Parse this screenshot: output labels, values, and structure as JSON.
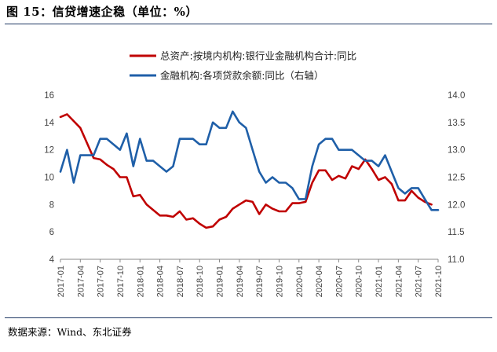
{
  "header": {
    "title": "图 15：信贷增速企稳（单位：%）"
  },
  "footer": {
    "source": "数据来源：Wind、东北证券"
  },
  "chart_data": {
    "type": "line",
    "title": "",
    "xlabel": "",
    "ylabel": "",
    "ylim_left": [
      4,
      16
    ],
    "yticks_left": [
      "4",
      "6",
      "8",
      "10",
      "12",
      "14",
      "16"
    ],
    "ylim_right": [
      11.0,
      14.0
    ],
    "yticks_right": [
      "11.0",
      "11.5",
      "12.0",
      "12.5",
      "13.0",
      "13.5",
      "14.0"
    ],
    "xticks": [
      "2017-01",
      "2017-04",
      "2017-07",
      "2017-10",
      "2018-01",
      "2018-04",
      "2018-07",
      "2018-10",
      "2019-01",
      "2019-04",
      "2019-07",
      "2019-10",
      "2020-01",
      "2020-04",
      "2020-07",
      "2020-10",
      "2021-01",
      "2021-04",
      "2021-07",
      "2021-10"
    ],
    "legend_position": "top",
    "grid": false,
    "series": [
      {
        "name": "总资产:按境内机构:银行业金融机构合计:同比",
        "axis": "left",
        "color": "#c00000",
        "x": [
          "2017-01",
          "2017-02",
          "2017-03",
          "2017-04",
          "2017-05",
          "2017-06",
          "2017-07",
          "2017-08",
          "2017-09",
          "2017-10",
          "2017-11",
          "2017-12",
          "2018-01",
          "2018-02",
          "2018-03",
          "2018-04",
          "2018-05",
          "2018-06",
          "2018-07",
          "2018-08",
          "2018-09",
          "2018-10",
          "2018-11",
          "2018-12",
          "2019-01",
          "2019-02",
          "2019-03",
          "2019-04",
          "2019-05",
          "2019-06",
          "2019-07",
          "2019-08",
          "2019-09",
          "2019-10",
          "2019-11",
          "2019-12",
          "2020-01",
          "2020-02",
          "2020-03",
          "2020-04",
          "2020-05",
          "2020-06",
          "2020-07",
          "2020-08",
          "2020-09",
          "2020-10",
          "2020-11",
          "2020-12",
          "2021-01",
          "2021-02",
          "2021-03",
          "2021-04",
          "2021-05",
          "2021-06",
          "2021-07",
          "2021-08",
          "2021-09"
        ],
        "values": [
          14.4,
          14.6,
          14.1,
          13.6,
          12.5,
          11.4,
          11.3,
          10.9,
          10.6,
          10.0,
          10.0,
          8.6,
          8.7,
          8.0,
          7.6,
          7.2,
          7.2,
          7.1,
          7.5,
          6.9,
          7.0,
          6.6,
          6.3,
          6.4,
          6.9,
          7.1,
          7.7,
          8.0,
          8.3,
          8.2,
          7.3,
          8.0,
          7.7,
          7.5,
          7.5,
          8.1,
          8.1,
          8.2,
          9.6,
          10.5,
          10.5,
          9.8,
          10.1,
          9.9,
          10.8,
          10.6,
          11.3,
          10.6,
          9.8,
          10.0,
          9.5,
          8.3,
          8.3,
          9.0,
          8.5,
          8.2,
          8.0
        ]
      },
      {
        "name": "金融机构:各项贷款余额:同比（右轴）",
        "axis": "right",
        "color": "#1f5fa8",
        "x": [
          "2017-01",
          "2017-02",
          "2017-03",
          "2017-04",
          "2017-05",
          "2017-06",
          "2017-07",
          "2017-08",
          "2017-09",
          "2017-10",
          "2017-11",
          "2017-12",
          "2018-01",
          "2018-02",
          "2018-03",
          "2018-04",
          "2018-05",
          "2018-06",
          "2018-07",
          "2018-08",
          "2018-09",
          "2018-10",
          "2018-11",
          "2018-12",
          "2019-01",
          "2019-02",
          "2019-03",
          "2019-04",
          "2019-05",
          "2019-06",
          "2019-07",
          "2019-08",
          "2019-09",
          "2019-10",
          "2019-11",
          "2019-12",
          "2020-01",
          "2020-02",
          "2020-03",
          "2020-04",
          "2020-05",
          "2020-06",
          "2020-07",
          "2020-08",
          "2020-09",
          "2020-10",
          "2020-11",
          "2020-12",
          "2021-01",
          "2021-02",
          "2021-03",
          "2021-04",
          "2021-05",
          "2021-06",
          "2021-07",
          "2021-08",
          "2021-09",
          "2021-10"
        ],
        "values": [
          12.6,
          13.0,
          12.4,
          12.9,
          12.9,
          12.9,
          13.2,
          13.2,
          13.1,
          13.0,
          13.3,
          12.7,
          13.2,
          12.8,
          12.8,
          12.7,
          12.6,
          12.7,
          13.2,
          13.2,
          13.2,
          13.1,
          13.1,
          13.5,
          13.4,
          13.4,
          13.7,
          13.5,
          13.4,
          13.0,
          12.6,
          12.4,
          12.5,
          12.4,
          12.4,
          12.3,
          12.1,
          12.1,
          12.7,
          13.1,
          13.2,
          13.2,
          13.0,
          13.0,
          13.0,
          12.9,
          12.8,
          12.8,
          12.7,
          12.9,
          12.6,
          12.3,
          12.2,
          12.3,
          12.3,
          12.1,
          11.9,
          11.9
        ]
      }
    ]
  }
}
